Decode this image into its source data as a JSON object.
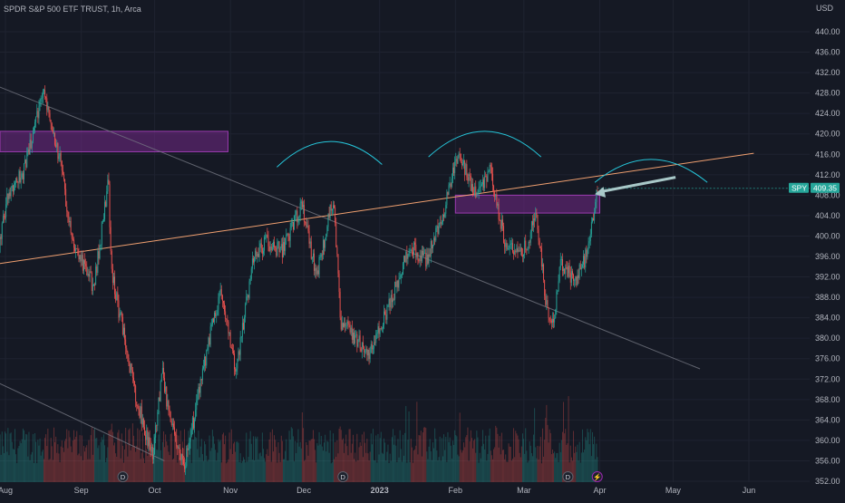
{
  "header": {
    "symbol_title": "SPDR S&P 500 ETF TRUST, 1h, Arca",
    "currency": "USD"
  },
  "colors": {
    "background": "#151924",
    "grid": "#1f2330",
    "axis_text": "#b2b5be",
    "up_candle": "#26a69a",
    "down_candle": "#ef5350",
    "trendline_orange": "#f0a070",
    "trendline_gray": "#787b86",
    "zone_fill": "#7b2a8f",
    "zone_stroke": "#9c3bb0",
    "arc_color": "#26c6da",
    "arrow_color": "#a8c8c8",
    "price_label_bg": "#26a69a"
  },
  "chart_data": {
    "type": "candlestick",
    "title": "SPDR S&P 500 ETF TRUST, 1h, Arca",
    "ylabel": "USD",
    "ylim": [
      350.5,
      445.5
    ],
    "y_ticks": [
      352,
      356,
      360,
      364,
      368,
      372,
      376,
      380,
      384,
      388,
      392,
      396,
      400,
      404,
      408,
      412,
      416,
      420,
      424,
      428,
      432,
      436,
      440
    ],
    "y_tick_labels": [
      "352.00",
      "356.00",
      "360.00",
      "364.00",
      "368.00",
      "372.00",
      "376.00",
      "380.00",
      "384.00",
      "388.00",
      "392.00",
      "396.00",
      "400.00",
      "404.00",
      "408.00",
      "412.00",
      "416.00",
      "420.00",
      "424.00",
      "428.00",
      "432.00",
      "436.00",
      "440.00"
    ],
    "x_ticks": [
      "Aug",
      "Sep",
      "Oct",
      "Nov",
      "Dec",
      "2023",
      "Feb",
      "Mar",
      "Apr",
      "May",
      "Jun"
    ],
    "x_tick_dates": [
      "2022-08-01",
      "2022-09-01",
      "2022-10-01",
      "2022-11-01",
      "2022-12-01",
      "2023-01-01",
      "2023-02-01",
      "2023-03-01",
      "2023-04-01",
      "2023-05-01",
      "2023-06-01"
    ],
    "last_price": {
      "symbol": "SPY",
      "value": "409.35"
    },
    "price_path": [
      [
        "2022-07-28",
        394
      ],
      [
        "2022-08-02",
        409
      ],
      [
        "2022-08-08",
        412
      ],
      [
        "2022-08-12",
        420
      ],
      [
        "2022-08-16",
        428
      ],
      [
        "2022-08-18",
        426
      ],
      [
        "2022-08-22",
        417
      ],
      [
        "2022-08-24",
        414
      ],
      [
        "2022-08-26",
        403
      ],
      [
        "2022-08-31",
        396
      ],
      [
        "2022-09-06",
        390
      ],
      [
        "2022-09-12",
        411
      ],
      [
        "2022-09-13",
        394
      ],
      [
        "2022-09-16",
        386
      ],
      [
        "2022-09-23",
        369
      ],
      [
        "2022-09-28",
        360
      ],
      [
        "2022-09-30",
        357
      ],
      [
        "2022-10-04",
        373
      ],
      [
        "2022-10-07",
        364
      ],
      [
        "2022-10-13",
        355
      ],
      [
        "2022-10-18",
        367
      ],
      [
        "2022-10-25",
        384
      ],
      [
        "2022-10-28",
        389
      ],
      [
        "2022-11-03",
        373
      ],
      [
        "2022-11-10",
        395
      ],
      [
        "2022-11-15",
        399
      ],
      [
        "2022-11-22",
        397
      ],
      [
        "2022-11-30",
        406
      ],
      [
        "2022-12-06",
        392
      ],
      [
        "2022-12-13",
        408
      ],
      [
        "2022-12-16",
        383
      ],
      [
        "2022-12-22",
        380
      ],
      [
        "2022-12-28",
        377
      ],
      [
        "2023-01-06",
        388
      ],
      [
        "2023-01-13",
        398
      ],
      [
        "2023-01-20",
        395
      ],
      [
        "2023-01-27",
        405
      ],
      [
        "2023-02-02",
        416
      ],
      [
        "2023-02-09",
        408
      ],
      [
        "2023-02-15",
        413
      ],
      [
        "2023-02-21",
        399
      ],
      [
        "2023-02-28",
        396
      ],
      [
        "2023-03-06",
        404
      ],
      [
        "2023-03-10",
        386
      ],
      [
        "2023-03-13",
        383
      ],
      [
        "2023-03-16",
        395
      ],
      [
        "2023-03-22",
        391
      ],
      [
        "2023-03-27",
        397
      ],
      [
        "2023-03-31",
        409.35
      ]
    ],
    "volume_peaks": [
      [
        "2022-09-13",
        0.85
      ],
      [
        "2022-12-16",
        0.8
      ],
      [
        "2023-03-10",
        0.8
      ],
      [
        "2023-03-17",
        0.95
      ]
    ]
  },
  "annotations": {
    "resistance_zone_1": {
      "from": "2022-07-28",
      "to": "2022-10-31",
      "price_low": 416.5,
      "price_high": 420.5
    },
    "resistance_zone_2": {
      "from": "2023-02-01",
      "to": "2023-04-01",
      "price_low": 404.5,
      "price_high": 408.0
    },
    "orange_trendline": {
      "start": [
        "2022-07-28",
        394.5
      ],
      "end": [
        "2023-06-03",
        416.2
      ]
    },
    "gray_trendline_upper": {
      "start": [
        "2022-07-28",
        429.5
      ],
      "end": [
        "2023-05-12",
        374.0
      ]
    },
    "gray_trendline_lower": {
      "start": [
        "2022-07-28",
        371.5
      ],
      "end": [
        "2022-10-05",
        356.0
      ]
    },
    "arcs": [
      {
        "left": [
          "2022-11-20",
          413.5
        ],
        "right": [
          "2023-01-02",
          414.0
        ],
        "peak": 418.5
      },
      {
        "left": [
          "2023-01-21",
          415.5
        ],
        "right": [
          "2023-03-08",
          415.5
        ],
        "peak": 420.5
      },
      {
        "left": [
          "2023-03-30",
          410.5
        ],
        "right": [
          "2023-05-15",
          410.5
        ],
        "peak": 415.0
      }
    ],
    "arrow": {
      "from": [
        "2023-05-02",
        411.5
      ],
      "to": [
        "2023-03-30",
        408.2
      ]
    },
    "event_markers": [
      {
        "date": "2022-09-18",
        "label": "D"
      },
      {
        "date": "2022-12-17",
        "label": "D"
      },
      {
        "date": "2023-03-19",
        "label": "D"
      },
      {
        "date": "2023-03-31",
        "label": "⚡"
      }
    ]
  }
}
